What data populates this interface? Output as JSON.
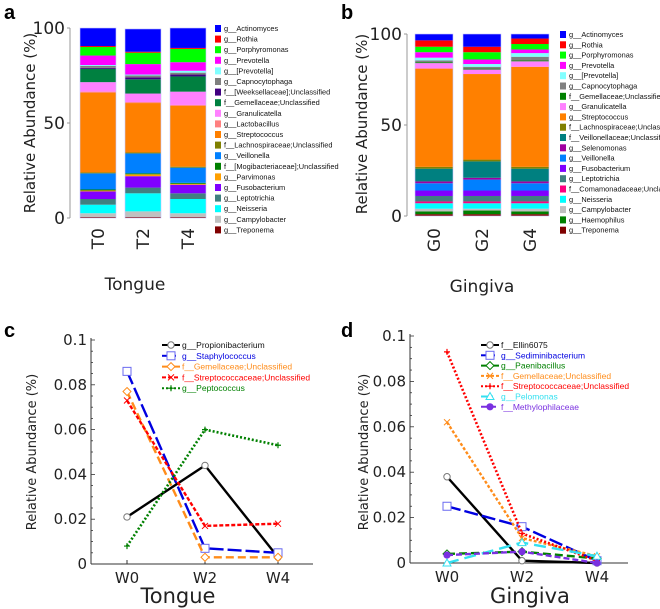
{
  "chart_data": [
    {
      "panel": "a",
      "type": "bar",
      "stacked": true,
      "xlabel": "Tongue",
      "ylabel": "Relative Abundance (%)",
      "ylim": [
        0,
        100
      ],
      "yticks": [
        "0",
        "50",
        "100"
      ],
      "categories": [
        "T0",
        "T2",
        "T4"
      ],
      "legend_position": "right",
      "series": [
        {
          "name": "g__Actinomyces",
          "color": "#0000ff",
          "values": [
            9.5,
            12,
            10.5
          ]
        },
        {
          "name": "g__Rothia",
          "color": "#ff0000",
          "values": [
            0.5,
            0.5,
            0.5
          ]
        },
        {
          "name": "g__Porphyromonas",
          "color": "#00ff00",
          "values": [
            4.5,
            6,
            7
          ]
        },
        {
          "name": "g__Prevotella",
          "color": "#ff00ff",
          "values": [
            5,
            5.5,
            4.5
          ]
        },
        {
          "name": "g__[Prevotella]",
          "color": "#80ffff",
          "values": [
            0.5,
            0.5,
            1
          ]
        },
        {
          "name": "g__Capnocytophaga",
          "color": "#808080",
          "values": [
            1,
            1,
            1
          ]
        },
        {
          "name": "f__[Weeksellaceae];Unclassified",
          "color": "#400080",
          "values": [
            0.5,
            1,
            1
          ]
        },
        {
          "name": "f__Gemellaceae;Unclassified",
          "color": "#008040",
          "values": [
            7,
            7.5,
            8
          ]
        },
        {
          "name": "g__Granulicatella",
          "color": "#ff80ff",
          "values": [
            5,
            4.5,
            7
          ]
        },
        {
          "name": "g__Lactobacillus",
          "color": "#ff8080",
          "values": [
            0.5,
            0.5,
            0.5
          ]
        },
        {
          "name": "g__Streptococcus",
          "color": "#ff8000",
          "values": [
            42,
            26,
            32
          ]
        },
        {
          "name": "f__Lachnospiraceae;Unclassified",
          "color": "#808000",
          "values": [
            0.5,
            0.5,
            0.5
          ]
        },
        {
          "name": "g__Veillonella",
          "color": "#0080ff",
          "values": [
            8.5,
            10.5,
            8
          ]
        },
        {
          "name": "f__[Mogibacteriaceae];Unclassified",
          "color": "#008000",
          "values": [
            0.5,
            0.5,
            0.5
          ]
        },
        {
          "name": "g__Parvimonas",
          "color": "#ffa000",
          "values": [
            0.5,
            1,
            0.5
          ]
        },
        {
          "name": "g__Fusobacterium",
          "color": "#8000ff",
          "values": [
            4,
            6,
            4.5
          ]
        },
        {
          "name": "g__Leptotrichia",
          "color": "#408080",
          "values": [
            3,
            3,
            3
          ]
        },
        {
          "name": "g__Neisseria",
          "color": "#00ffff",
          "values": [
            4.5,
            9.5,
            7.5
          ]
        },
        {
          "name": "g__Campylobacter",
          "color": "#c0c0c0",
          "values": [
            2,
            3,
            2
          ]
        },
        {
          "name": "g__Treponema",
          "color": "#800000",
          "values": [
            0.5,
            0.5,
            0.5
          ]
        }
      ]
    },
    {
      "panel": "b",
      "type": "bar",
      "stacked": true,
      "xlabel": "Gingiva",
      "ylabel": "Relative Abundance (%)",
      "ylim": [
        0,
        100
      ],
      "yticks": [
        "0",
        "50",
        "100"
      ],
      "categories": [
        "G0",
        "G2",
        "G4"
      ],
      "legend_position": "right",
      "series": [
        {
          "name": "g__Actinomyces",
          "color": "#0000ff",
          "values": [
            3.5,
            7,
            2.5
          ]
        },
        {
          "name": "g__Rothia",
          "color": "#ff0000",
          "values": [
            3.5,
            3,
            3
          ]
        },
        {
          "name": "g__Porphyromonas",
          "color": "#00ff00",
          "values": [
            3,
            4,
            3
          ]
        },
        {
          "name": "g__Prevotella",
          "color": "#ff00ff",
          "values": [
            3,
            2.5,
            2
          ]
        },
        {
          "name": "g__[Prevotella]",
          "color": "#80ffff",
          "values": [
            1.5,
            1.5,
            2
          ]
        },
        {
          "name": "g__Capnocytophaga",
          "color": "#808080",
          "values": [
            1,
            1,
            2
          ]
        },
        {
          "name": "f__Gemellaceae;Unclassified",
          "color": "#008000",
          "values": [
            0.5,
            0.5,
            0.5
          ]
        },
        {
          "name": "g__Granulicatella",
          "color": "#ff80ff",
          "values": [
            3,
            2.5,
            3
          ]
        },
        {
          "name": "g__Streptococcus",
          "color": "#ff8000",
          "values": [
            54,
            47,
            55
          ]
        },
        {
          "name": "f__Lachnospiraceae;Unclassified",
          "color": "#808000",
          "values": [
            1,
            1,
            1
          ]
        },
        {
          "name": "f__Veillonellaceae;Unclassified",
          "color": "#008080",
          "values": [
            7,
            9,
            7
          ]
        },
        {
          "name": "g__Selenomonas",
          "color": "#a000a0",
          "values": [
            1,
            1,
            1
          ]
        },
        {
          "name": "g__Veillonella",
          "color": "#0080ff",
          "values": [
            4,
            6,
            4
          ]
        },
        {
          "name": "g__Fusobacterium",
          "color": "#8000ff",
          "values": [
            3,
            3,
            3
          ]
        },
        {
          "name": "g__Leptotrichia",
          "color": "#408080",
          "values": [
            3,
            3,
            3
          ]
        },
        {
          "name": "f__Comamonadaceae;Unclassified",
          "color": "#ff0080",
          "values": [
            1,
            1,
            1
          ]
        },
        {
          "name": "g__Neisseria",
          "color": "#00ffff",
          "values": [
            3,
            3,
            3
          ]
        },
        {
          "name": "g__Campylobacter",
          "color": "#c0c0c0",
          "values": [
            1.5,
            1,
            1.5
          ]
        },
        {
          "name": "g__Haemophilus",
          "color": "#008000",
          "values": [
            1.5,
            2,
            1.5
          ]
        },
        {
          "name": "g__Treponema",
          "color": "#800000",
          "values": [
            1,
            1,
            1
          ]
        }
      ]
    },
    {
      "panel": "c",
      "type": "line",
      "xlabel": "Tongue",
      "ylabel": "Relative Abundance (%)",
      "ylim": [
        0,
        0.1
      ],
      "yticks": [
        "0",
        "0.02",
        "0.04",
        "0.06",
        "0.08",
        "0.1"
      ],
      "categories": [
        "W0",
        "W2",
        "W4"
      ],
      "legend_position": "top-right",
      "series": [
        {
          "name": "g__Propionibacterium",
          "color": "#000000",
          "dash": "",
          "marker": "circle",
          "values": [
            0.021,
            0.044,
            0.003
          ]
        },
        {
          "name": "g__Staphylococcus",
          "color": "#0000e0",
          "dash": "14 4",
          "marker": "square",
          "values": [
            0.086,
            0.007,
            0.005
          ]
        },
        {
          "name": "f__Gemellaceae;Unclassified",
          "color": "#ff8c1a",
          "dash": "8 4",
          "marker": "diamond",
          "values": [
            0.077,
            0.003,
            0.003
          ]
        },
        {
          "name": "f__Streptococcaceae;Unclassified",
          "color": "#ff0000",
          "dash": "4 2",
          "marker": "x",
          "values": [
            0.073,
            0.017,
            0.018
          ]
        },
        {
          "name": "g__Peptococcus",
          "color": "#008000",
          "dash": "2 2",
          "marker": "plus",
          "values": [
            0.008,
            0.06,
            0.053
          ]
        }
      ]
    },
    {
      "panel": "d",
      "type": "line",
      "xlabel": "Gingiva",
      "ylabel": "Relative Abundance (%)",
      "ylim": [
        0,
        0.1
      ],
      "yticks": [
        "0",
        "0.02",
        "0.04",
        "0.06",
        "0.08",
        "0.1"
      ],
      "categories": [
        "W0",
        "W2",
        "W4"
      ],
      "legend_position": "top-right",
      "series": [
        {
          "name": "f__Ellin6075",
          "color": "#000000",
          "dash": "",
          "marker": "circle",
          "values": [
            0.038,
            0.001,
            0.0
          ]
        },
        {
          "name": "g__Sediminibacterium",
          "color": "#0000e0",
          "dash": "14 4",
          "marker": "square",
          "values": [
            0.025,
            0.016,
            0.001
          ]
        },
        {
          "name": "g__Paenibacillus",
          "color": "#008000",
          "dash": "8 4",
          "marker": "diamond",
          "values": [
            0.004,
            0.005,
            0.002
          ]
        },
        {
          "name": "f__Gemellaceae;Unclassified",
          "color": "#ff8c1a",
          "dash": "3 2",
          "marker": "x",
          "values": [
            0.062,
            0.011,
            0.003
          ]
        },
        {
          "name": "f__Streptococcaceae;Unclassified",
          "color": "#ff0000",
          "dash": "2 2",
          "marker": "plus",
          "values": [
            0.093,
            0.013,
            0.001
          ]
        },
        {
          "name": "g__Pelomonas",
          "color": "#33e0f0",
          "dash": "12 6",
          "marker": "triangle",
          "values": [
            0.0,
            0.009,
            0.003
          ]
        },
        {
          "name": "f__Methylophilaceae",
          "color": "#7a30e0",
          "dash": "6 3",
          "marker": "dot",
          "values": [
            0.0035,
            0.005,
            0.0
          ]
        }
      ]
    }
  ]
}
